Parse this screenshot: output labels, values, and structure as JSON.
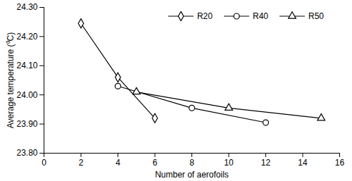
{
  "chart_data": {
    "type": "line",
    "x_label": "Number of aerofoils",
    "y_label": "Average temperature (⁰C)",
    "xlim": [
      0,
      16
    ],
    "xticks": [
      0,
      2,
      4,
      6,
      8,
      10,
      12,
      14,
      16
    ],
    "ylim": [
      23.8,
      24.3
    ],
    "yticks": [
      23.8,
      23.9,
      24,
      24.1,
      24.2,
      24.3
    ],
    "grid": false,
    "legend": "top-right",
    "series": [
      {
        "name": "R20",
        "color": "#000000",
        "marker": "diamond",
        "x": [
          2,
          4,
          6
        ],
        "values": [
          24.245,
          24.06,
          23.92
        ]
      },
      {
        "name": "R40",
        "color": "#000000",
        "marker": "circle",
        "x": [
          4,
          8,
          12
        ],
        "values": [
          24.03,
          23.955,
          23.905
        ]
      },
      {
        "name": "R50",
        "color": "#000000",
        "marker": "triangle",
        "x": [
          5,
          10,
          15
        ],
        "values": [
          24.01,
          23.955,
          23.92
        ]
      }
    ]
  }
}
